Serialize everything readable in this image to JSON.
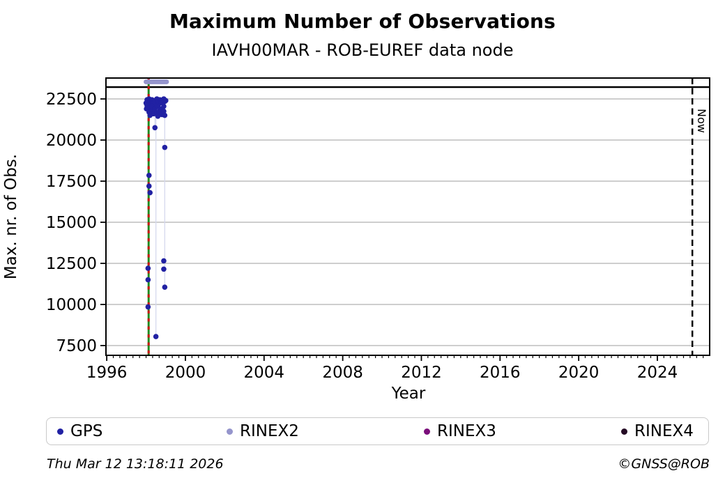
{
  "header": {
    "title": "Maximum Number of Observations",
    "subtitle": "IAVH00MAR - ROB-EUREF data node"
  },
  "footer": {
    "timestamp": "Thu Mar 12 13:18:11 2026",
    "credit": "©GNSS@ROB"
  },
  "legend": {
    "items": [
      {
        "label": "GPS",
        "color": "#2121a3"
      },
      {
        "label": "RINEX2",
        "color": "#9595cc"
      },
      {
        "label": "RINEX3",
        "color": "#7a0e7a"
      },
      {
        "label": "RINEX4",
        "color": "#250b25"
      }
    ]
  },
  "chart_data": {
    "type": "scatter",
    "title": "Maximum Number of Observations",
    "subtitle": "IAVH00MAR - ROB-EUREF data node",
    "xlabel": "Year",
    "ylabel": "Max. nr. of Obs.",
    "x_range": [
      1995.96,
      2026.66
    ],
    "y_range": [
      6907,
      23771
    ],
    "x_ticks": [
      1996,
      2000,
      2004,
      2008,
      2012,
      2016,
      2020,
      2024
    ],
    "x_minor_step": 0.3333,
    "y_ticks": [
      7500,
      10000,
      12500,
      15000,
      17500,
      20000,
      22500
    ],
    "grid": "horizontal",
    "grid_color": "#b0b0b0",
    "legend_position": "bottom",
    "series": [
      {
        "name": "GPS",
        "color": "#2121a3",
        "marker_radius": 3.8,
        "points": [
          [
            1998.0,
            22250
          ],
          [
            1998.02,
            21900
          ],
          [
            1998.05,
            22450
          ],
          [
            1998.1,
            22300
          ],
          [
            1998.12,
            22380
          ],
          [
            1998.15,
            22500
          ],
          [
            1998.2,
            22350
          ],
          [
            1998.22,
            22420
          ],
          [
            1998.25,
            22200
          ],
          [
            1998.3,
            22450
          ],
          [
            1998.32,
            22280
          ],
          [
            1998.35,
            22300
          ],
          [
            1998.4,
            22150
          ],
          [
            1998.42,
            22330
          ],
          [
            1998.45,
            22400
          ],
          [
            1998.5,
            22250
          ],
          [
            1998.52,
            22380
          ],
          [
            1998.55,
            22500
          ],
          [
            1998.6,
            22350
          ],
          [
            1998.62,
            22300
          ],
          [
            1998.65,
            22200
          ],
          [
            1998.7,
            22450
          ],
          [
            1998.72,
            22360
          ],
          [
            1998.75,
            22300
          ],
          [
            1998.8,
            22400
          ],
          [
            1998.82,
            22320
          ],
          [
            1998.85,
            22250
          ],
          [
            1998.9,
            22500
          ],
          [
            1998.95,
            22350
          ],
          [
            1999.0,
            22400
          ],
          [
            1998.05,
            22100
          ],
          [
            1998.1,
            21950
          ],
          [
            1998.15,
            21700
          ],
          [
            1998.2,
            21500
          ],
          [
            1998.25,
            21750
          ],
          [
            1998.3,
            21850
          ],
          [
            1998.3,
            22050
          ],
          [
            1998.35,
            21600
          ],
          [
            1998.4,
            21600
          ],
          [
            1998.45,
            21900
          ],
          [
            1998.55,
            21650
          ],
          [
            1998.6,
            21450
          ],
          [
            1998.6,
            22050
          ],
          [
            1998.65,
            21700
          ],
          [
            1998.7,
            21800
          ],
          [
            1998.75,
            21900
          ],
          [
            1998.8,
            21550
          ],
          [
            1998.85,
            21650
          ],
          [
            1998.9,
            21750
          ],
          [
            1998.9,
            22050
          ],
          [
            1998.95,
            21500
          ],
          [
            1998.15,
            17850
          ],
          [
            1998.15,
            17200
          ],
          [
            1998.2,
            16800
          ],
          [
            1998.45,
            20750
          ],
          [
            1998.95,
            19550
          ],
          [
            1998.9,
            12650
          ],
          [
            1998.1,
            12200
          ],
          [
            1998.9,
            12150
          ],
          [
            1998.1,
            11500
          ],
          [
            1998.95,
            11050
          ],
          [
            1998.1,
            9850
          ],
          [
            1998.5,
            8050
          ]
        ]
      },
      {
        "name": "RINEX2",
        "color": "#9595cc",
        "marker_radius": 3.5,
        "points": [
          [
            1998.0,
            23540
          ],
          [
            1998.08,
            23540
          ],
          [
            1998.16,
            23540
          ],
          [
            1998.24,
            23540
          ],
          [
            1998.32,
            23540
          ],
          [
            1998.4,
            23540
          ],
          [
            1998.48,
            23540
          ],
          [
            1998.56,
            23540
          ],
          [
            1998.64,
            23540
          ],
          [
            1998.72,
            23540
          ],
          [
            1998.8,
            23540
          ],
          [
            1998.88,
            23540
          ],
          [
            1998.96,
            23540
          ],
          [
            1999.04,
            23540
          ]
        ]
      },
      {
        "name": "RINEX3",
        "color": "#7a0e7a",
        "marker_radius": 3.5,
        "points": []
      },
      {
        "name": "RINEX4",
        "color": "#250b25",
        "marker_radius": 3.5,
        "points": []
      }
    ],
    "annotations": {
      "now_label": "Now",
      "vlines": [
        {
          "x": 1998.13,
          "color": "#1f8b1f",
          "style": "solid",
          "width": 3,
          "name": "station-start-line-green"
        },
        {
          "x": 1998.13,
          "color": "#cc0f0f",
          "style": "dashed",
          "dash": "4.5 7",
          "width": 3,
          "name": "station-start-line-red"
        },
        {
          "x": 2025.78,
          "color": "#000000",
          "style": "dashed",
          "dash": "9 5.5",
          "width": 2.5,
          "name": "now-line"
        }
      ],
      "hlines": [
        {
          "y": 23220,
          "color": "#000000",
          "width": 2.5,
          "name": "max-obs-limit-line"
        }
      ],
      "droplines": [
        {
          "x": 1998.45,
          "from": 22400,
          "to": 20750
        },
        {
          "x": 1998.5,
          "from": 22250,
          "to": 8050
        },
        {
          "x": 1998.95,
          "from": 22350,
          "to": 11050
        }
      ],
      "dropline_color": "#d6d9ee"
    }
  }
}
